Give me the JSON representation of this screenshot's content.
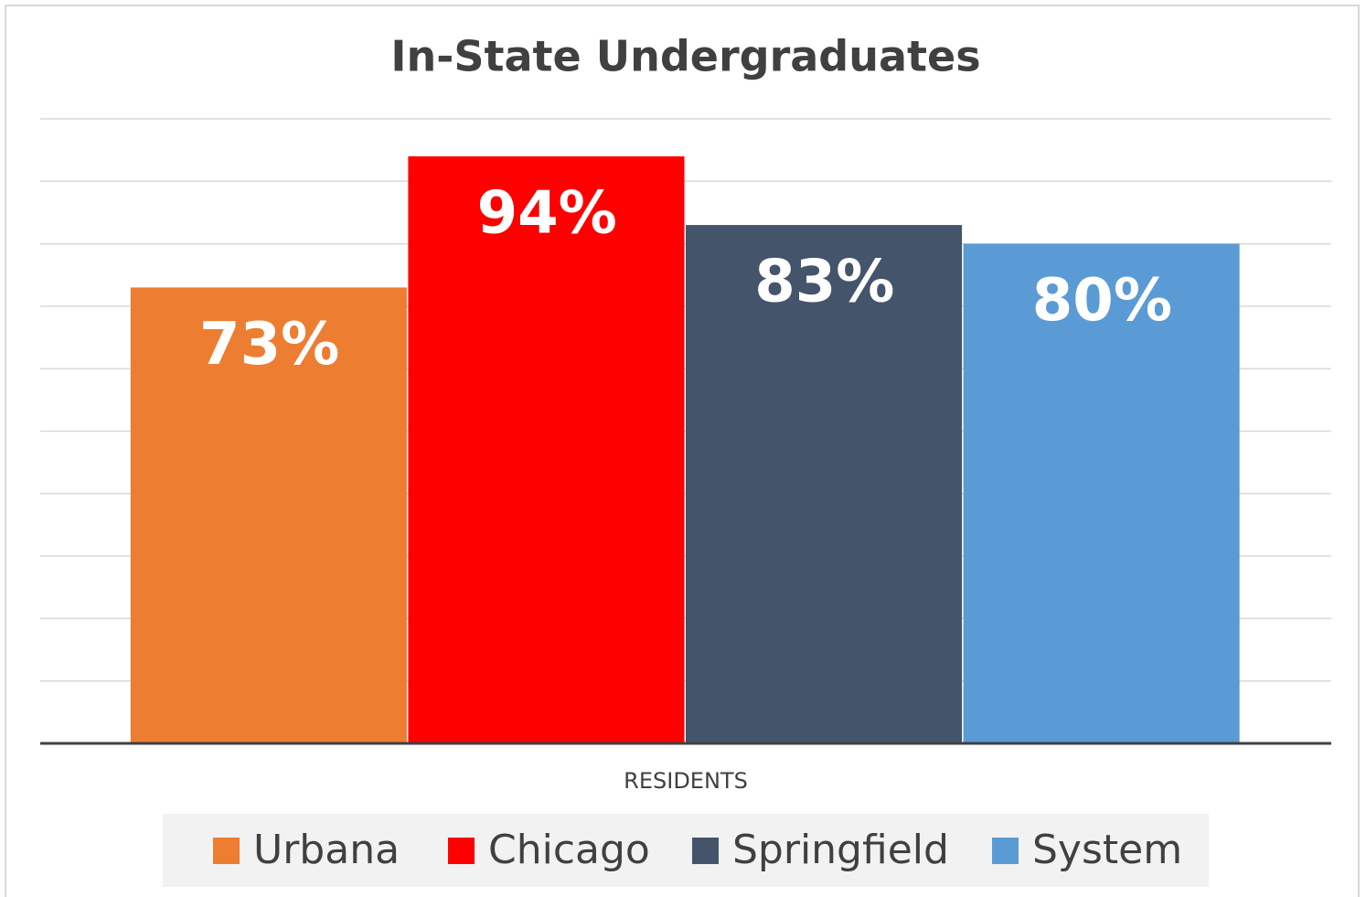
{
  "chart_data": {
    "type": "bar",
    "title": "In-State Undergraduates",
    "categories": [
      "RESIDENTS"
    ],
    "series": [
      {
        "name": "Urbana",
        "color": "#ed7d31",
        "values": [
          73
        ],
        "value_labels": [
          "73%"
        ]
      },
      {
        "name": "Chicago",
        "color": "#ff0000",
        "values": [
          94
        ],
        "value_labels": [
          "94%"
        ]
      },
      {
        "name": "Springfield",
        "color": "#44546a",
        "values": [
          83
        ],
        "value_labels": [
          "83%"
        ]
      },
      {
        "name": "System",
        "color": "#5b9bd5",
        "values": [
          80
        ],
        "value_labels": [
          "80%"
        ]
      }
    ],
    "ylim": [
      0,
      100
    ],
    "yticks": [
      0,
      10,
      20,
      30,
      40,
      50,
      60,
      70,
      80,
      90,
      100
    ],
    "grid": true,
    "legend": "bottom"
  }
}
